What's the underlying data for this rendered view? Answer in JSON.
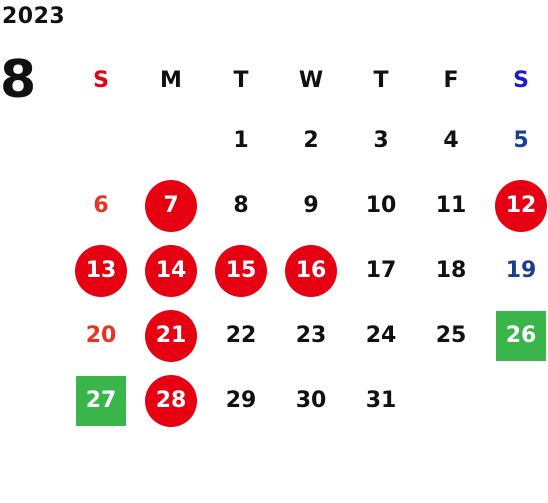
{
  "year": "2023",
  "month": "8",
  "colors": {
    "holiday_red": "#e60012",
    "saturday_blue": "#1b3f8f",
    "event_green": "#39b54a",
    "text": "#111111"
  },
  "weekdays": [
    "S",
    "M",
    "T",
    "W",
    "T",
    "F",
    "S"
  ],
  "weeks": [
    [
      {
        "d": ""
      },
      {
        "d": ""
      },
      {
        "d": "1"
      },
      {
        "d": "2"
      },
      {
        "d": "3"
      },
      {
        "d": "4"
      },
      {
        "d": "5",
        "color": "#1b3f8f"
      }
    ],
    [
      {
        "d": "6",
        "color": "#e63322"
      },
      {
        "d": "7",
        "mark": "circle"
      },
      {
        "d": "8"
      },
      {
        "d": "9"
      },
      {
        "d": "10"
      },
      {
        "d": "11"
      },
      {
        "d": "12",
        "mark": "circle"
      }
    ],
    [
      {
        "d": "13",
        "mark": "circle"
      },
      {
        "d": "14",
        "mark": "circle"
      },
      {
        "d": "15",
        "mark": "circle"
      },
      {
        "d": "16",
        "mark": "circle"
      },
      {
        "d": "17"
      },
      {
        "d": "18"
      },
      {
        "d": "19",
        "color": "#1b3f8f"
      }
    ],
    [
      {
        "d": "20",
        "color": "#e63322"
      },
      {
        "d": "21",
        "mark": "circle"
      },
      {
        "d": "22"
      },
      {
        "d": "23"
      },
      {
        "d": "24"
      },
      {
        "d": "25"
      },
      {
        "d": "26",
        "mark": "square"
      }
    ],
    [
      {
        "d": "27",
        "mark": "square"
      },
      {
        "d": "28",
        "mark": "circle"
      },
      {
        "d": "29"
      },
      {
        "d": "30"
      },
      {
        "d": "31"
      },
      {
        "d": ""
      },
      {
        "d": ""
      }
    ]
  ]
}
